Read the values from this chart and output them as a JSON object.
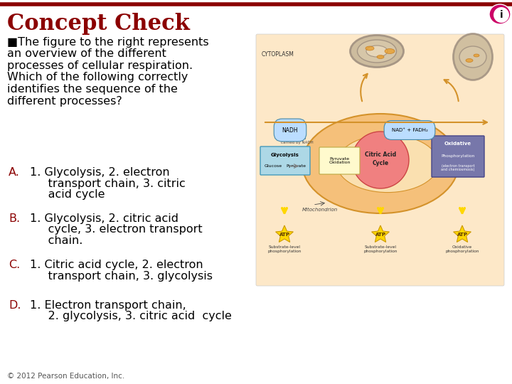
{
  "title": "Concept Check",
  "title_color": "#8B0000",
  "title_fontsize": 22,
  "background_color": "#FFFFFF",
  "bullet": "■",
  "question_lines": [
    "The figure to the right represents",
    "an overview of the different",
    "processes of cellular respiration.",
    "Which of the following correctly",
    "identifies the sequence of the",
    "different processes?"
  ],
  "question_color": "#000000",
  "question_fontsize": 11.5,
  "answer_label_color": "#8B0000",
  "answer_text_color": "#000000",
  "answer_fontsize": 11.5,
  "answers": [
    {
      "label": "A.",
      "lines": [
        "1. Glycolysis, 2. electron",
        "     transport chain, 3. citric",
        "     acid cycle"
      ]
    },
    {
      "label": "B.",
      "lines": [
        "1. Glycolysis, 2. citric acid",
        "     cycle, 3. electron transport",
        "     chain."
      ]
    },
    {
      "label": "C.",
      "lines": [
        "1. Citric acid cycle, 2. electron",
        "     transport chain, 3. glycolysis"
      ]
    },
    {
      "label": "D.",
      "lines": [
        "1. Electron transport chain,",
        "     2. glycolysis, 3. citric acid  cycle"
      ]
    }
  ],
  "footer_text": "© 2012 Pearson Education, Inc.",
  "footer_fontsize": 7.5,
  "footer_color": "#555555",
  "icon_color_outer": "#CC0066",
  "icon_color_inner": "#000000",
  "diagram_bg_color": "#FDE8C8",
  "diagram_border_color": "#CCCCCC",
  "mito_outer_color": "#F5C07A",
  "mito_border_color": "#D4922A",
  "mito_inner_color": "#FAE0B0",
  "cac_color": "#F08080",
  "cac_border_color": "#CC4444",
  "glyc_color": "#ADD8E6",
  "glyc_border_color": "#4499BB",
  "pyro_color": "#FFFACD",
  "pyro_border_color": "#BBAA44",
  "oxp_color": "#7777AA",
  "oxp_border_color": "#444488",
  "nadh_box_color": "#BBDDFF",
  "atp_color": "#FFD700",
  "atp_border_color": "#CC9900",
  "arrow_color": "#FFD700",
  "organelle_color": "#BBAA99",
  "organelle_border": "#998877",
  "line_color": "#CCCCCC"
}
